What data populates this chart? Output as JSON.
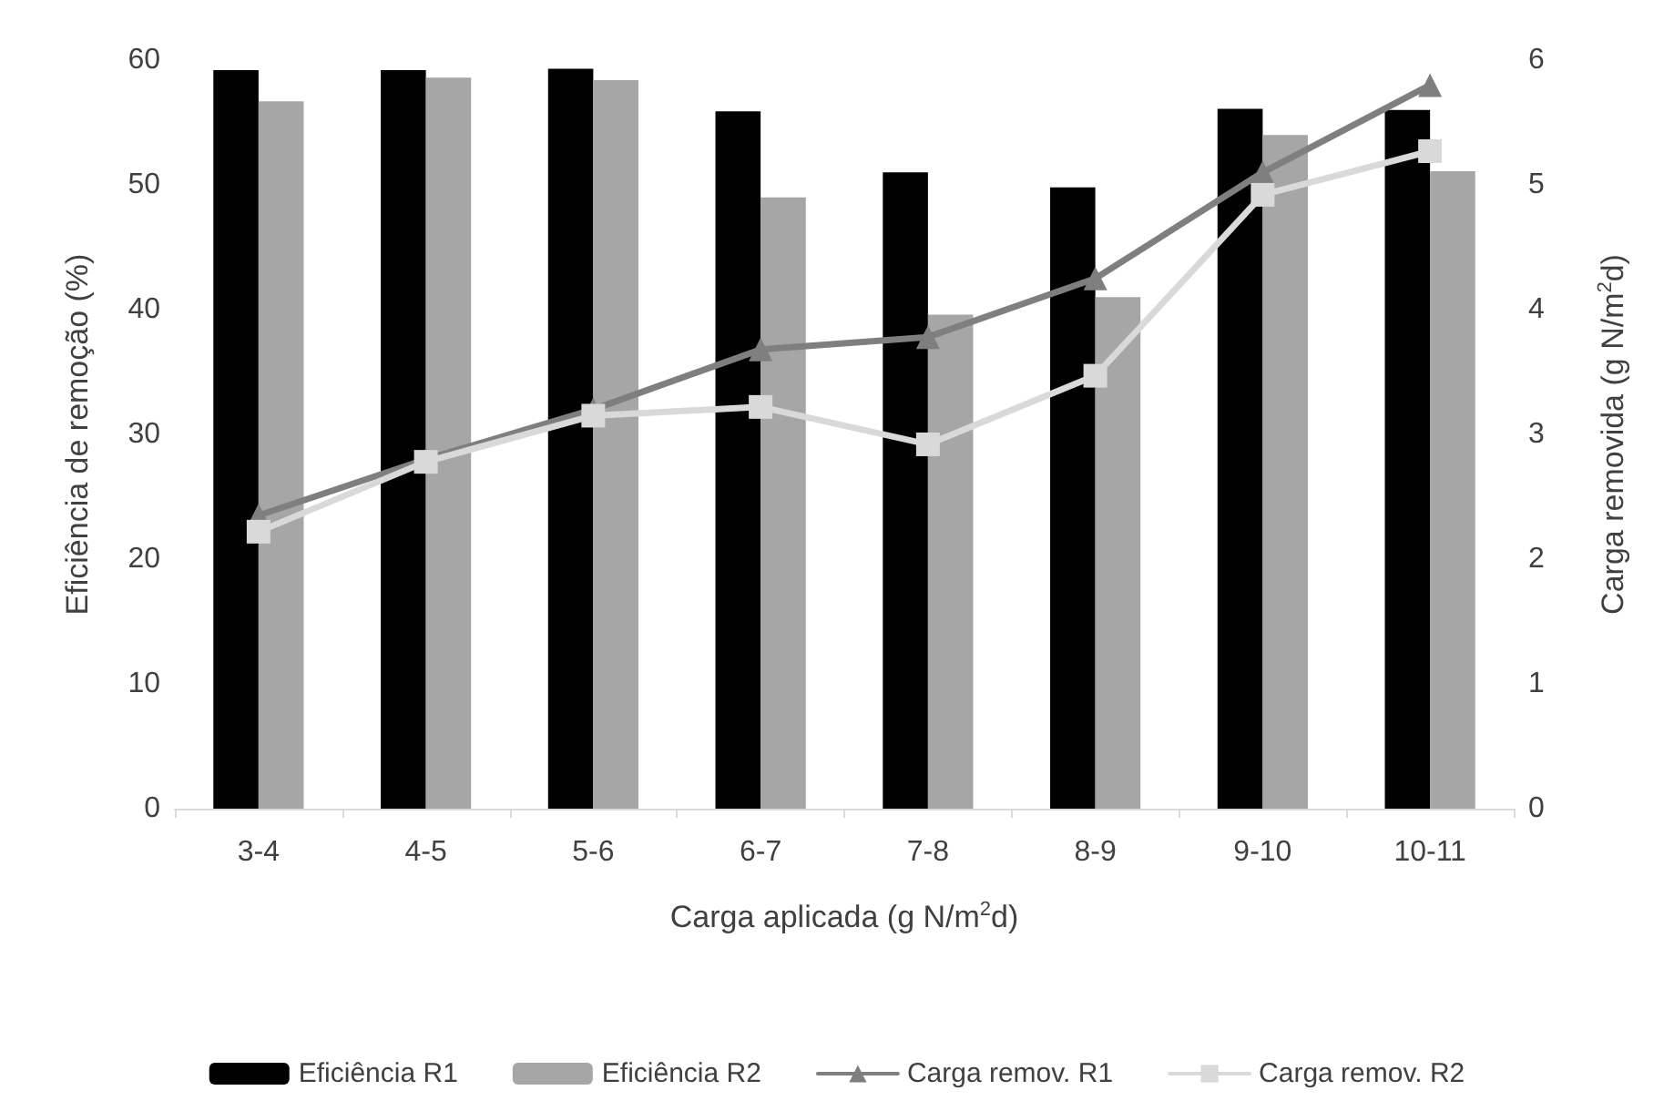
{
  "chart_data": {
    "type": "bar",
    "categories": [
      "3-4",
      "4-5",
      "5-6",
      "6-7",
      "7-8",
      "8-9",
      "9-10",
      "10-11"
    ],
    "xlabel": "Carga aplicada (g N/m$^{2}$d)",
    "ylabel": "Eficiência de remoção (%)",
    "y2label": "Carga removida (g N/m$^{2}$d)",
    "ylim": [
      0,
      60
    ],
    "yticks": [
      0,
      10,
      20,
      30,
      40,
      50,
      60
    ],
    "y2lim": [
      0,
      6
    ],
    "y2ticks": [
      0,
      1,
      2,
      3,
      4,
      5,
      6
    ],
    "grid": false,
    "legend": "bottom",
    "series": [
      {
        "name": "Eficiência R1",
        "color": "#000000",
        "values": [
          59.2,
          59.2,
          59.3,
          55.9,
          51.0,
          49.8,
          56.1,
          56.0
        ]
      },
      {
        "name": "Eficiência R2",
        "color": "#a6a6a6",
        "values": [
          56.7,
          58.6,
          58.4,
          49.0,
          39.6,
          41.0,
          54.0,
          51.1
        ]
      },
      {
        "name": "Carga remov. R1",
        "type": "line",
        "axis": "y2",
        "marker": "triangle",
        "color": "#7f7f7f",
        "values": [
          2.35,
          2.8,
          3.2,
          3.68,
          3.78,
          4.25,
          5.1,
          5.8
        ]
      },
      {
        "name": "Carga remov. R2",
        "type": "line",
        "axis": "y2",
        "marker": "square",
        "color": "#d9d9d9",
        "values": [
          2.22,
          2.78,
          3.15,
          3.22,
          2.92,
          3.47,
          4.92,
          5.27
        ]
      }
    ]
  }
}
